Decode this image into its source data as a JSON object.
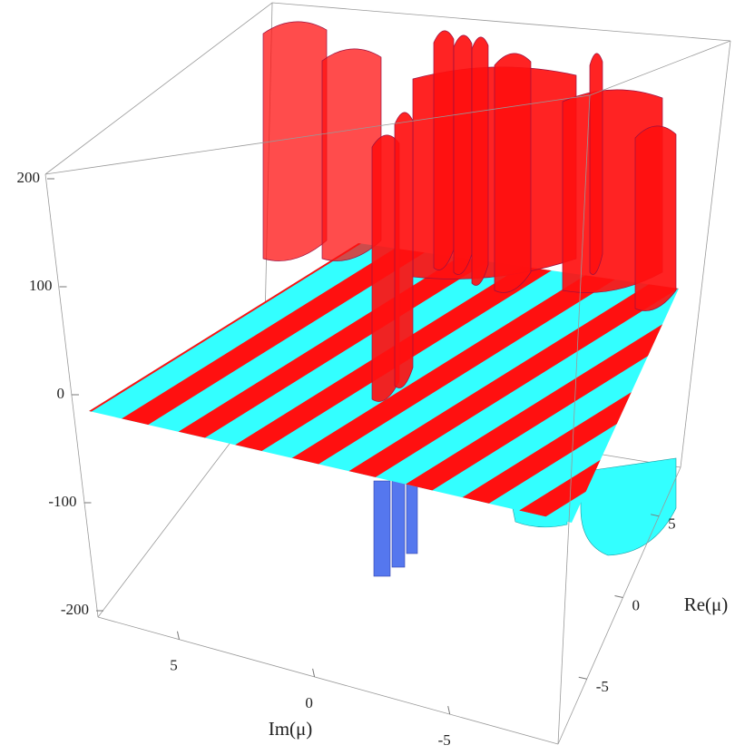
{
  "chart_data": {
    "type": "surface3d",
    "xlabel": "Im(μ)",
    "ylabel": "Re(μ)",
    "xlim": [
      8,
      -9
    ],
    "xticks": [
      5,
      0,
      -5
    ],
    "ylim": [
      -9,
      8
    ],
    "yticks": [
      -5,
      0,
      5
    ],
    "zlim": [
      -200,
      200
    ],
    "zticks": [
      200,
      100,
      0,
      -100,
      -200
    ],
    "colors": [
      "#ff1010",
      "#33ffff"
    ]
  }
}
